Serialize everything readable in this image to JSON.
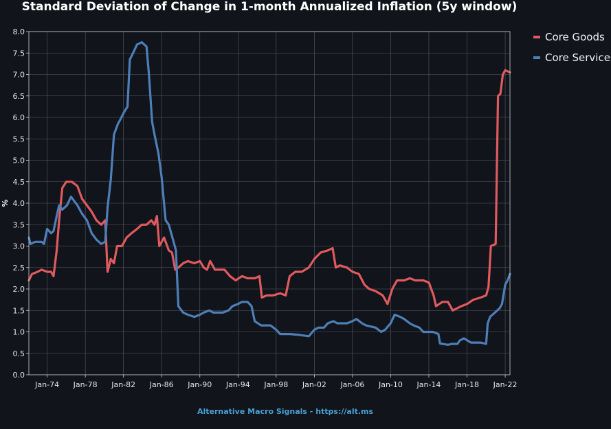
{
  "chart_data": {
    "type": "line",
    "title": "Standard Deviation of Change in 1-month Annualized Inflation (5y window)",
    "ylabel": "%",
    "xlabel": "",
    "ylim": [
      0,
      8
    ],
    "xlim": [
      "1972-02",
      "2022-07"
    ],
    "y_ticks": [
      "0.0",
      "0.5",
      "1.0",
      "1.5",
      "2.0",
      "2.5",
      "3.0",
      "3.5",
      "4.0",
      "4.5",
      "5.0",
      "5.5",
      "6.0",
      "6.5",
      "7.0",
      "7.5",
      "8.0"
    ],
    "x_ticks": [
      {
        "label": "Jan-74",
        "date": "1974-01"
      },
      {
        "label": "Jan-78",
        "date": "1978-01"
      },
      {
        "label": "Jan-82",
        "date": "1982-01"
      },
      {
        "label": "Jan-86",
        "date": "1986-01"
      },
      {
        "label": "Jan-90",
        "date": "1990-01"
      },
      {
        "label": "Jan-94",
        "date": "1994-01"
      },
      {
        "label": "Jan-98",
        "date": "1998-01"
      },
      {
        "label": "Jan-02",
        "date": "2002-01"
      },
      {
        "label": "Jan-06",
        "date": "2006-01"
      },
      {
        "label": "Jan-10",
        "date": "2010-01"
      },
      {
        "label": "Jan-14",
        "date": "2014-01"
      },
      {
        "label": "Jan-18",
        "date": "2018-01"
      },
      {
        "label": "Jan-22",
        "date": "2022-01"
      }
    ],
    "grid": true,
    "legend_position": "top-right",
    "series": [
      {
        "name": "Core Goods",
        "color": "#e05a5e",
        "points": [
          [
            "1972-02",
            2.2
          ],
          [
            "1972-06",
            2.35
          ],
          [
            "1973-01",
            2.4
          ],
          [
            "1973-06",
            2.45
          ],
          [
            "1974-01",
            2.4
          ],
          [
            "1974-06",
            2.4
          ],
          [
            "1974-09",
            2.3
          ],
          [
            "1975-01",
            2.9
          ],
          [
            "1975-04",
            3.6
          ],
          [
            "1975-08",
            4.35
          ],
          [
            "1976-01",
            4.5
          ],
          [
            "1976-08",
            4.5
          ],
          [
            "1977-03",
            4.4
          ],
          [
            "1977-09",
            4.1
          ],
          [
            "1978-03",
            3.95
          ],
          [
            "1978-09",
            3.8
          ],
          [
            "1979-03",
            3.6
          ],
          [
            "1979-09",
            3.5
          ],
          [
            "1980-02",
            3.6
          ],
          [
            "1980-05",
            2.4
          ],
          [
            "1980-09",
            2.7
          ],
          [
            "1981-01",
            2.6
          ],
          [
            "1981-05",
            3.0
          ],
          [
            "1981-11",
            3.0
          ],
          [
            "1982-05",
            3.2
          ],
          [
            "1982-11",
            3.3
          ],
          [
            "1983-06",
            3.4
          ],
          [
            "1983-12",
            3.5
          ],
          [
            "1984-06",
            3.5
          ],
          [
            "1984-12",
            3.6
          ],
          [
            "1985-04",
            3.5
          ],
          [
            "1985-07",
            3.7
          ],
          [
            "1985-10",
            3.0
          ],
          [
            "1986-04",
            3.2
          ],
          [
            "1986-10",
            2.9
          ],
          [
            "1987-02",
            2.85
          ],
          [
            "1987-06",
            2.45
          ],
          [
            "1987-10",
            2.5
          ],
          [
            "1988-04",
            2.6
          ],
          [
            "1988-10",
            2.65
          ],
          [
            "1989-06",
            2.6
          ],
          [
            "1990-01",
            2.65
          ],
          [
            "1990-06",
            2.5
          ],
          [
            "1990-10",
            2.45
          ],
          [
            "1991-02",
            2.65
          ],
          [
            "1991-08",
            2.45
          ],
          [
            "1992-08",
            2.45
          ],
          [
            "1993-03",
            2.3
          ],
          [
            "1993-10",
            2.2
          ],
          [
            "1994-06",
            2.3
          ],
          [
            "1995-01",
            2.25
          ],
          [
            "1995-10",
            2.25
          ],
          [
            "1996-04",
            2.3
          ],
          [
            "1996-07",
            1.8
          ],
          [
            "1997-01",
            1.85
          ],
          [
            "1997-09",
            1.85
          ],
          [
            "1998-06",
            1.9
          ],
          [
            "1999-01",
            1.85
          ],
          [
            "1999-06",
            2.3
          ],
          [
            "2000-01",
            2.4
          ],
          [
            "2000-09",
            2.4
          ],
          [
            "2001-06",
            2.5
          ],
          [
            "2002-01",
            2.7
          ],
          [
            "2002-09",
            2.85
          ],
          [
            "2003-06",
            2.9
          ],
          [
            "2003-12",
            2.95
          ],
          [
            "2004-04",
            2.5
          ],
          [
            "2004-09",
            2.55
          ],
          [
            "2005-06",
            2.5
          ],
          [
            "2006-01",
            2.4
          ],
          [
            "2006-09",
            2.35
          ],
          [
            "2007-04",
            2.1
          ],
          [
            "2007-10",
            2.0
          ],
          [
            "2008-06",
            1.95
          ],
          [
            "2009-03",
            1.85
          ],
          [
            "2009-09",
            1.65
          ],
          [
            "2010-03",
            2.0
          ],
          [
            "2010-09",
            2.2
          ],
          [
            "2011-06",
            2.2
          ],
          [
            "2012-01",
            2.25
          ],
          [
            "2012-08",
            2.2
          ],
          [
            "2013-06",
            2.2
          ],
          [
            "2014-01",
            2.15
          ],
          [
            "2014-07",
            1.85
          ],
          [
            "2014-10",
            1.6
          ],
          [
            "2015-06",
            1.7
          ],
          [
            "2016-01",
            1.7
          ],
          [
            "2016-07",
            1.5
          ],
          [
            "2017-06",
            1.6
          ],
          [
            "2018-01",
            1.65
          ],
          [
            "2018-09",
            1.75
          ],
          [
            "2019-06",
            1.8
          ],
          [
            "2020-01",
            1.85
          ],
          [
            "2020-04",
            2.05
          ],
          [
            "2020-07",
            3.0
          ],
          [
            "2021-01",
            3.05
          ],
          [
            "2021-04",
            6.5
          ],
          [
            "2021-07",
            6.55
          ],
          [
            "2021-10",
            7.0
          ],
          [
            "2022-01",
            7.1
          ],
          [
            "2022-07",
            7.05
          ]
        ]
      },
      {
        "name": "Core Services",
        "color": "#4e7fb8",
        "points": [
          [
            "1972-02",
            3.2
          ],
          [
            "1972-04",
            3.05
          ],
          [
            "1972-10",
            3.1
          ],
          [
            "1973-06",
            3.1
          ],
          [
            "1973-09",
            3.05
          ],
          [
            "1974-01",
            3.4
          ],
          [
            "1974-06",
            3.3
          ],
          [
            "1974-09",
            3.35
          ],
          [
            "1975-01",
            3.7
          ],
          [
            "1975-04",
            3.95
          ],
          [
            "1975-08",
            3.85
          ],
          [
            "1976-02",
            3.95
          ],
          [
            "1976-07",
            4.15
          ],
          [
            "1977-03",
            3.95
          ],
          [
            "1977-09",
            3.75
          ],
          [
            "1978-03",
            3.6
          ],
          [
            "1978-09",
            3.3
          ],
          [
            "1979-03",
            3.15
          ],
          [
            "1979-09",
            3.05
          ],
          [
            "1980-02",
            3.1
          ],
          [
            "1980-05",
            3.9
          ],
          [
            "1980-09",
            4.55
          ],
          [
            "1981-01",
            5.6
          ],
          [
            "1981-06",
            5.85
          ],
          [
            "1981-09",
            5.95
          ],
          [
            "1982-01",
            6.1
          ],
          [
            "1982-06",
            6.25
          ],
          [
            "1982-09",
            7.35
          ],
          [
            "1983-01",
            7.5
          ],
          [
            "1983-06",
            7.7
          ],
          [
            "1983-12",
            7.75
          ],
          [
            "1984-06",
            7.65
          ],
          [
            "1984-09",
            7.0
          ],
          [
            "1985-01",
            5.9
          ],
          [
            "1985-04",
            5.6
          ],
          [
            "1985-09",
            5.15
          ],
          [
            "1986-01",
            4.6
          ],
          [
            "1986-06",
            3.6
          ],
          [
            "1986-10",
            3.5
          ],
          [
            "1987-04",
            3.1
          ],
          [
            "1987-07",
            2.9
          ],
          [
            "1987-10",
            1.6
          ],
          [
            "1988-04",
            1.45
          ],
          [
            "1988-10",
            1.4
          ],
          [
            "1989-06",
            1.35
          ],
          [
            "1990-01",
            1.4
          ],
          [
            "1990-06",
            1.45
          ],
          [
            "1991-01",
            1.5
          ],
          [
            "1991-06",
            1.45
          ],
          [
            "1992-06",
            1.45
          ],
          [
            "1993-01",
            1.5
          ],
          [
            "1993-06",
            1.6
          ],
          [
            "1994-01",
            1.65
          ],
          [
            "1994-06",
            1.7
          ],
          [
            "1995-01",
            1.7
          ],
          [
            "1995-06",
            1.6
          ],
          [
            "1995-10",
            1.25
          ],
          [
            "1996-06",
            1.15
          ],
          [
            "1997-06",
            1.15
          ],
          [
            "1998-01",
            1.05
          ],
          [
            "1998-06",
            0.95
          ],
          [
            "1999-06",
            0.95
          ],
          [
            "2000-06",
            0.93
          ],
          [
            "2001-06",
            0.9
          ],
          [
            "2002-01",
            1.05
          ],
          [
            "2002-06",
            1.1
          ],
          [
            "2003-01",
            1.1
          ],
          [
            "2003-06",
            1.2
          ],
          [
            "2004-01",
            1.25
          ],
          [
            "2004-06",
            1.2
          ],
          [
            "2005-06",
            1.2
          ],
          [
            "2006-01",
            1.25
          ],
          [
            "2006-06",
            1.3
          ],
          [
            "2007-01",
            1.2
          ],
          [
            "2007-06",
            1.15
          ],
          [
            "2008-06",
            1.1
          ],
          [
            "2009-01",
            1.0
          ],
          [
            "2009-06",
            1.05
          ],
          [
            "2010-01",
            1.2
          ],
          [
            "2010-06",
            1.4
          ],
          [
            "2011-01",
            1.35
          ],
          [
            "2011-06",
            1.3
          ],
          [
            "2012-01",
            1.2
          ],
          [
            "2012-06",
            1.15
          ],
          [
            "2013-01",
            1.1
          ],
          [
            "2013-06",
            1.0
          ],
          [
            "2014-06",
            1.0
          ],
          [
            "2015-01",
            0.95
          ],
          [
            "2015-03",
            0.73
          ],
          [
            "2016-01",
            0.7
          ],
          [
            "2016-06",
            0.72
          ],
          [
            "2017-01",
            0.72
          ],
          [
            "2017-04",
            0.8
          ],
          [
            "2017-09",
            0.85
          ],
          [
            "2018-06",
            0.75
          ],
          [
            "2019-06",
            0.75
          ],
          [
            "2020-01",
            0.72
          ],
          [
            "2020-03",
            1.2
          ],
          [
            "2020-06",
            1.35
          ],
          [
            "2020-12",
            1.45
          ],
          [
            "2021-06",
            1.55
          ],
          [
            "2021-09",
            1.65
          ],
          [
            "2022-01",
            2.1
          ],
          [
            "2022-04",
            2.2
          ],
          [
            "2022-07",
            2.35
          ]
        ]
      }
    ]
  },
  "footer": "Alternative Macro Signals - https://alt.ms"
}
